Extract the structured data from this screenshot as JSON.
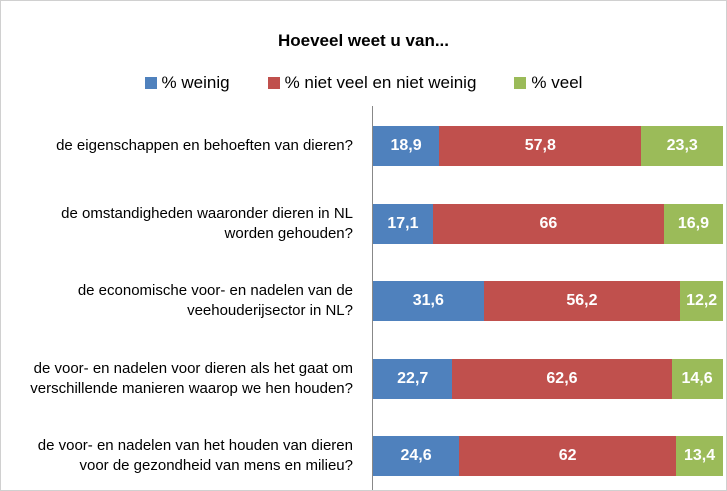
{
  "chart_data": {
    "type": "stacked-barh",
    "title": "Hoeveel weet u van...",
    "categories": [
      "de eigenschappen en behoeften van dieren?",
      "de omstandigheden waaronder dieren in NL worden gehouden?",
      "de economische voor- en nadelen van de veehouderijsector in NL?",
      "de voor- en nadelen voor dieren als het gaat om verschillende manieren waarop we hen houden?",
      "de voor- en nadelen van het houden van dieren voor de gezondheid van mens en milieu?"
    ],
    "series": [
      {
        "name": "% weinig",
        "color": "#4f81bd",
        "values": [
          18.9,
          17.1,
          31.6,
          22.7,
          24.6
        ],
        "value_labels": [
          "18,9",
          "17,1",
          "31,6",
          "22,7",
          "24,6"
        ]
      },
      {
        "name": "% niet veel en niet weinig",
        "color": "#c0504d",
        "values": [
          57.8,
          66,
          56.2,
          62.6,
          62
        ],
        "value_labels": [
          "57,8",
          "66",
          "56,2",
          "62,6",
          "62"
        ]
      },
      {
        "name": "% veel",
        "color": "#9bbb59",
        "values": [
          23.3,
          16.9,
          12.2,
          14.6,
          13.4
        ],
        "value_labels": [
          "23,3",
          "16,9",
          "12,2",
          "14,6",
          "13,4"
        ]
      }
    ],
    "xlim": [
      0,
      100
    ]
  }
}
